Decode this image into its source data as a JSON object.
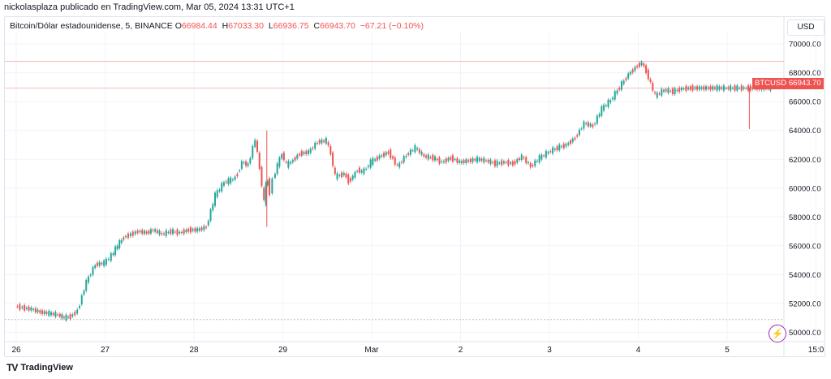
{
  "header": {
    "published_line": "nickolasplaza publicado en TradingView.com, Mar 05, 2024 13:31 UTC+1"
  },
  "symbol": {
    "title": "Bitcoin/Dólar estadounidense, 5, BINANCE",
    "o_label": "O",
    "o_value": "66984.44",
    "h_label": "H",
    "h_value": "67033.30",
    "l_label": "L",
    "l_value": "66936.75",
    "c_label": "C",
    "c_value": "66943.70",
    "change": "−67.21 (−0.10%)"
  },
  "currency_button": "USD",
  "price_labels": {
    "ticker": "BTCUSD",
    "last": "66943.70"
  },
  "footer": {
    "brand": "TradingView",
    "logo_glyph": "TV"
  },
  "colors": {
    "up": "#26a69a",
    "down": "#ef5350",
    "grid": "#f0f3fa",
    "axis_text": "#131722",
    "replay": "#9c27b0"
  },
  "chart_data": {
    "type": "line",
    "title": "Bitcoin/Dólar estadounidense, 5, BINANCE",
    "y_ticks": [
      "70000.00",
      "68000.00",
      "66000.00",
      "64000.00",
      "62000.00",
      "60000.00",
      "58000.00",
      "56000.00",
      "54000.00",
      "52000.00",
      "50000.00"
    ],
    "x_ticks": [
      "26",
      "27",
      "28",
      "29",
      "Mar",
      "2",
      "3",
      "4",
      "5",
      "15:0"
    ],
    "ylim": [
      49400,
      70800
    ],
    "last_price": 66943.7,
    "series": [
      {
        "x": [
          0,
          0.08,
          0.18,
          0.28,
          0.38,
          0.48,
          0.55,
          0.62,
          0.7,
          0.8,
          0.9,
          1.0,
          1.08,
          1.15,
          1.22,
          1.3,
          1.38,
          1.48,
          1.55,
          1.65,
          1.75,
          1.85,
          1.95,
          2.05,
          2.15,
          2.25,
          2.35,
          2.4,
          2.45,
          2.5,
          2.55,
          2.62,
          2.7,
          2.75,
          2.8,
          2.82,
          2.84,
          2.86,
          2.9,
          2.95,
          3.0,
          3.05,
          3.1,
          3.2,
          3.3,
          3.4,
          3.5,
          3.55,
          3.6,
          3.7,
          3.75,
          3.8,
          3.85,
          3.9,
          3.95,
          4.0,
          4.1,
          4.2,
          4.3,
          4.4,
          4.5,
          4.6,
          4.7,
          4.8,
          4.9,
          5.0,
          5.1,
          5.2,
          5.3,
          5.4,
          5.5,
          5.6,
          5.7,
          5.8,
          5.9,
          6.0,
          6.1,
          6.2,
          6.3,
          6.4,
          6.5,
          6.6,
          6.7,
          6.8,
          6.9,
          7.0,
          7.05,
          7.1,
          7.2,
          7.3,
          7.4,
          7.5,
          7.6,
          7.7,
          7.8,
          7.9,
          8.0,
          8.1,
          8.2,
          8.25,
          8.3,
          8.35,
          8.4,
          8.45,
          8.5
        ],
        "values": [
          51800,
          51700,
          51600,
          51400,
          51300,
          51200,
          51000,
          51100,
          51500,
          53500,
          54700,
          54800,
          55300,
          56000,
          56600,
          56800,
          57000,
          56900,
          57100,
          56800,
          57000,
          56900,
          57100,
          57100,
          57300,
          59500,
          60400,
          60500,
          60600,
          61000,
          61800,
          61600,
          63400,
          61400,
          59000,
          60200,
          60500,
          59700,
          60600,
          61600,
          62400,
          61600,
          61800,
          62400,
          62500,
          63200,
          63300,
          62400,
          60800,
          61000,
          60500,
          60800,
          61300,
          61100,
          61400,
          61800,
          62200,
          62500,
          61500,
          62300,
          62800,
          62200,
          62100,
          61800,
          62100,
          61800,
          61900,
          62000,
          61900,
          61700,
          61800,
          61700,
          62200,
          61500,
          62100,
          62500,
          62800,
          63000,
          63500,
          64500,
          64300,
          65500,
          66100,
          67000,
          67900,
          68500,
          68700,
          68100,
          66400,
          66800,
          66700,
          66900,
          66943.7,
          66943.7,
          66943.7,
          66943.7,
          66943.7,
          66943.7,
          66943.7,
          66943.7,
          66943.7,
          66943.7,
          66943.7,
          66943.7,
          66943.7
        ]
      }
    ]
  }
}
